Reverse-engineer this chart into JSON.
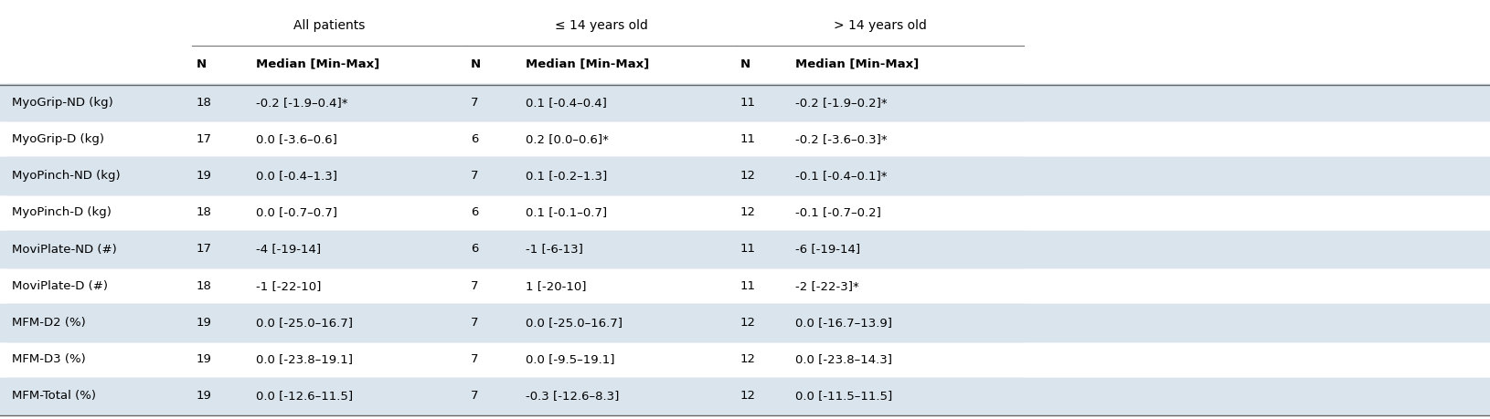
{
  "row_labels": [
    "MyoGrip-ND (kg)",
    "MyoGrip-D (kg)",
    "MyoPinch-ND (kg)",
    "MyoPinch-D (kg)",
    "MoviPlate-ND (#)",
    "MoviPlate-D (#)",
    "MFM-D2 (%)",
    "MFM-D3 (%)",
    "MFM-Total (%)"
  ],
  "data": [
    [
      "18",
      "-0.2 [-1.9–0.4]*",
      "7",
      "0.1 [-0.4–0.4]",
      "11",
      "-0.2 [-1.9–0.2]*"
    ],
    [
      "17",
      "0.0 [-3.6–0.6]",
      "6",
      "0.2 [0.0–0.6]*",
      "11",
      "-0.2 [-3.6–0.3]*"
    ],
    [
      "19",
      "0.0 [-0.4–1.3]",
      "7",
      "0.1 [-0.2–1.3]",
      "12",
      "-0.1 [-0.4–0.1]*"
    ],
    [
      "18",
      "0.0 [-0.7–0.7]",
      "6",
      "0.1 [-0.1–0.7]",
      "12",
      "-0.1 [-0.7–0.2]"
    ],
    [
      "17",
      "-4 [-19-14]",
      "6",
      "-1 [-6-13]",
      "11",
      "-6 [-19-14]"
    ],
    [
      "18",
      "-1 [-22-10]",
      "7",
      "1 [-20-10]",
      "11",
      "-2 [-22-3]*"
    ],
    [
      "19",
      "0.0 [-25.0–16.7]",
      "7",
      "0.0 [-25.0–16.7]",
      "12",
      "0.0 [-16.7–13.9]"
    ],
    [
      "19",
      "0.0 [-23.8–19.1]",
      "7",
      "0.0 [-9.5–19.1]",
      "12",
      "0.0 [-23.8–14.3]"
    ],
    [
      "19",
      "0.0 [-12.6–11.5]",
      "7",
      "-0.3 [-12.6–8.3]",
      "12",
      "0.0 [-11.5–11.5]"
    ]
  ],
  "group_labels": [
    "All patients",
    "≤ 14 years old",
    "> 14 years old"
  ],
  "col_header": "N",
  "col_header2": "Median [Min-Max]",
  "shaded_rows": [
    0,
    2,
    4,
    6,
    8
  ],
  "bg_color": "#ffffff",
  "shaded_color": "#d9e4ed",
  "text_color": "#000000",
  "line_color": "#888888",
  "fontsize": 9.5,
  "header_fontsize": 9.5,
  "group_fontsize": 10.0
}
